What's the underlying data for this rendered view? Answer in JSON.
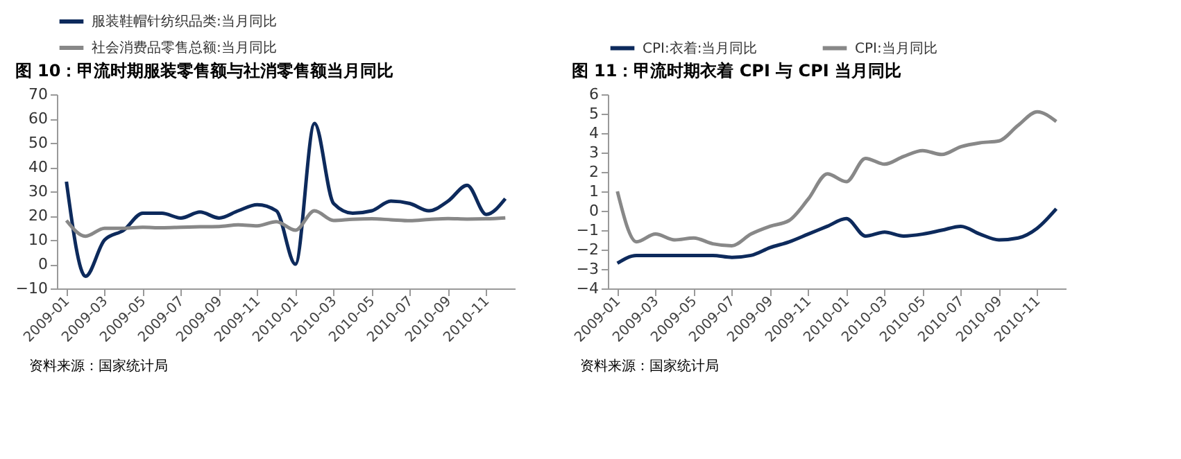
{
  "chart_data": [
    {
      "type": "line",
      "title": "图 10：甲流时期服装零售额与社消零售额当月同比",
      "categories": [
        "2009-01",
        null,
        "2009-03",
        null,
        "2009-05",
        null,
        "2009-07",
        null,
        "2009-09",
        null,
        "2009-11",
        null,
        "2010-01",
        null,
        "2010-03",
        null,
        "2010-05",
        null,
        "2010-07",
        null,
        "2010-09",
        null,
        "2010-11",
        null
      ],
      "series": [
        {
          "name": "服装鞋帽针纺织品类:当月同比",
          "color": "#0d2a5c",
          "values": [
            34,
            -5,
            10,
            14,
            21,
            21,
            19,
            21.5,
            19,
            22,
            24.5,
            22,
            0,
            58,
            25,
            21,
            22,
            26,
            25,
            22,
            26,
            32.5,
            20.5,
            27
          ]
        },
        {
          "name": "社会消费品零售总额:当月同比",
          "color": "#888888",
          "values": [
            18,
            11.5,
            14.8,
            14.8,
            15.2,
            15,
            15.2,
            15.4,
            15.5,
            16.2,
            15.8,
            17.5,
            14,
            22,
            18,
            18.5,
            18.7,
            18.3,
            17.9,
            18.4,
            18.8,
            18.6,
            18.7,
            19.1
          ]
        }
      ],
      "ylim": [
        -10,
        70
      ],
      "yticks": [
        -10,
        0,
        10,
        20,
        30,
        40,
        50,
        60,
        70
      ],
      "grid": false,
      "legend": "top",
      "annotations": [
        "资料来源：国家统计局"
      ]
    },
    {
      "type": "line",
      "title": "图 11：甲流时期衣着 CPI 与 CPI 当月同比",
      "categories": [
        "2009-01",
        null,
        "2009-03",
        null,
        "2009-05",
        null,
        "2009-07",
        null,
        "2009-09",
        null,
        "2009-11",
        null,
        "2010-01",
        null,
        "2010-03",
        null,
        "2010-05",
        null,
        "2010-07",
        null,
        "2010-09",
        null,
        "2010-11",
        null
      ],
      "series": [
        {
          "name": "CPI:衣着:当月同比",
          "color": "#0d2a5c",
          "values": [
            -2.7,
            -2.3,
            -2.3,
            -2.3,
            -2.3,
            -2.3,
            -2.4,
            -2.3,
            -1.9,
            -1.6,
            -1.2,
            -0.8,
            -0.4,
            -1.3,
            -1.1,
            -1.3,
            -1.2,
            -1.0,
            -0.8,
            -1.2,
            -1.5,
            -1.4,
            -0.9,
            0.1
          ]
        },
        {
          "name": "CPI:当月同比",
          "color": "#888888",
          "values": [
            1.0,
            -1.6,
            -1.2,
            -1.5,
            -1.4,
            -1.7,
            -1.8,
            -1.2,
            -0.8,
            -0.5,
            0.6,
            1.9,
            1.5,
            2.7,
            2.4,
            2.8,
            3.1,
            2.9,
            3.3,
            3.5,
            3.6,
            4.4,
            5.1,
            4.6
          ]
        }
      ],
      "ylim": [
        -4,
        6
      ],
      "yticks": [
        -4,
        -3,
        -2,
        -1,
        0,
        1,
        2,
        3,
        4,
        5,
        6
      ],
      "grid": false,
      "legend": "top",
      "annotations": [
        "资料来源：国家统计局"
      ]
    }
  ]
}
